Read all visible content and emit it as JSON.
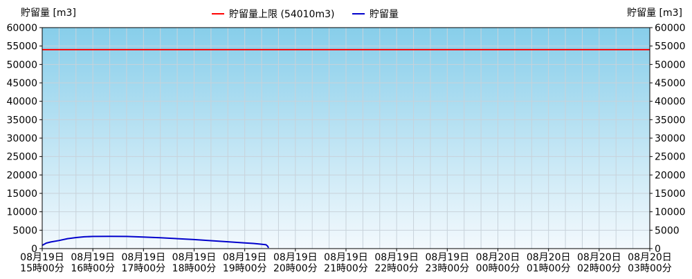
{
  "chart_data": {
    "type": "line",
    "ylabel_left": "貯留量 [m3]",
    "ylabel_right": "貯留量 [m3]",
    "ylim": [
      0,
      60000
    ],
    "yticks": [
      0,
      5000,
      10000,
      15000,
      20000,
      25000,
      30000,
      35000,
      40000,
      45000,
      50000,
      55000,
      60000
    ],
    "x_range_hours": [
      15,
      27
    ],
    "xticks": [
      {
        "hour": 15,
        "date": "08月19日",
        "time": "15時00分"
      },
      {
        "hour": 16,
        "date": "08月19日",
        "time": "16時00分"
      },
      {
        "hour": 17,
        "date": "08月19日",
        "time": "17時00分"
      },
      {
        "hour": 18,
        "date": "08月19日",
        "time": "18時00分"
      },
      {
        "hour": 19,
        "date": "08月19日",
        "time": "19時00分"
      },
      {
        "hour": 20,
        "date": "08月19日",
        "time": "20時00分"
      },
      {
        "hour": 21,
        "date": "08月19日",
        "time": "21時00分"
      },
      {
        "hour": 22,
        "date": "08月19日",
        "time": "22時00分"
      },
      {
        "hour": 23,
        "date": "08月19日",
        "time": "23時00分"
      },
      {
        "hour": 24,
        "date": "08月20日",
        "time": "00時00分"
      },
      {
        "hour": 25,
        "date": "08月20日",
        "time": "01時00分"
      },
      {
        "hour": 26,
        "date": "08月20日",
        "time": "02時00分"
      },
      {
        "hour": 27,
        "date": "08月20日",
        "time": "03時00分"
      }
    ],
    "grid": true,
    "legend": {
      "placement": "top-center",
      "items": [
        {
          "label": "貯留量上限 (54010m3)",
          "color": "#ff0000"
        },
        {
          "label": "貯留量",
          "color": "#0000cc"
        }
      ]
    },
    "series": [
      {
        "name": "貯留量上限 (54010m3)",
        "color": "#ff0000",
        "points": [
          [
            15,
            54010
          ],
          [
            27,
            54010
          ]
        ]
      },
      {
        "name": "貯留量",
        "color": "#0000cc",
        "points": [
          [
            15.0,
            900
          ],
          [
            15.08,
            1500
          ],
          [
            15.17,
            1800
          ],
          [
            15.33,
            2200
          ],
          [
            15.5,
            2700
          ],
          [
            15.67,
            3000
          ],
          [
            15.83,
            3200
          ],
          [
            16.0,
            3300
          ],
          [
            16.33,
            3320
          ],
          [
            16.67,
            3300
          ],
          [
            17.0,
            3150
          ],
          [
            17.33,
            2950
          ],
          [
            17.67,
            2700
          ],
          [
            18.0,
            2450
          ],
          [
            18.33,
            2150
          ],
          [
            18.67,
            1850
          ],
          [
            19.0,
            1550
          ],
          [
            19.17,
            1400
          ],
          [
            19.33,
            1200
          ],
          [
            19.42,
            1050
          ],
          [
            19.45,
            700
          ],
          [
            19.47,
            200
          ]
        ]
      }
    ]
  }
}
